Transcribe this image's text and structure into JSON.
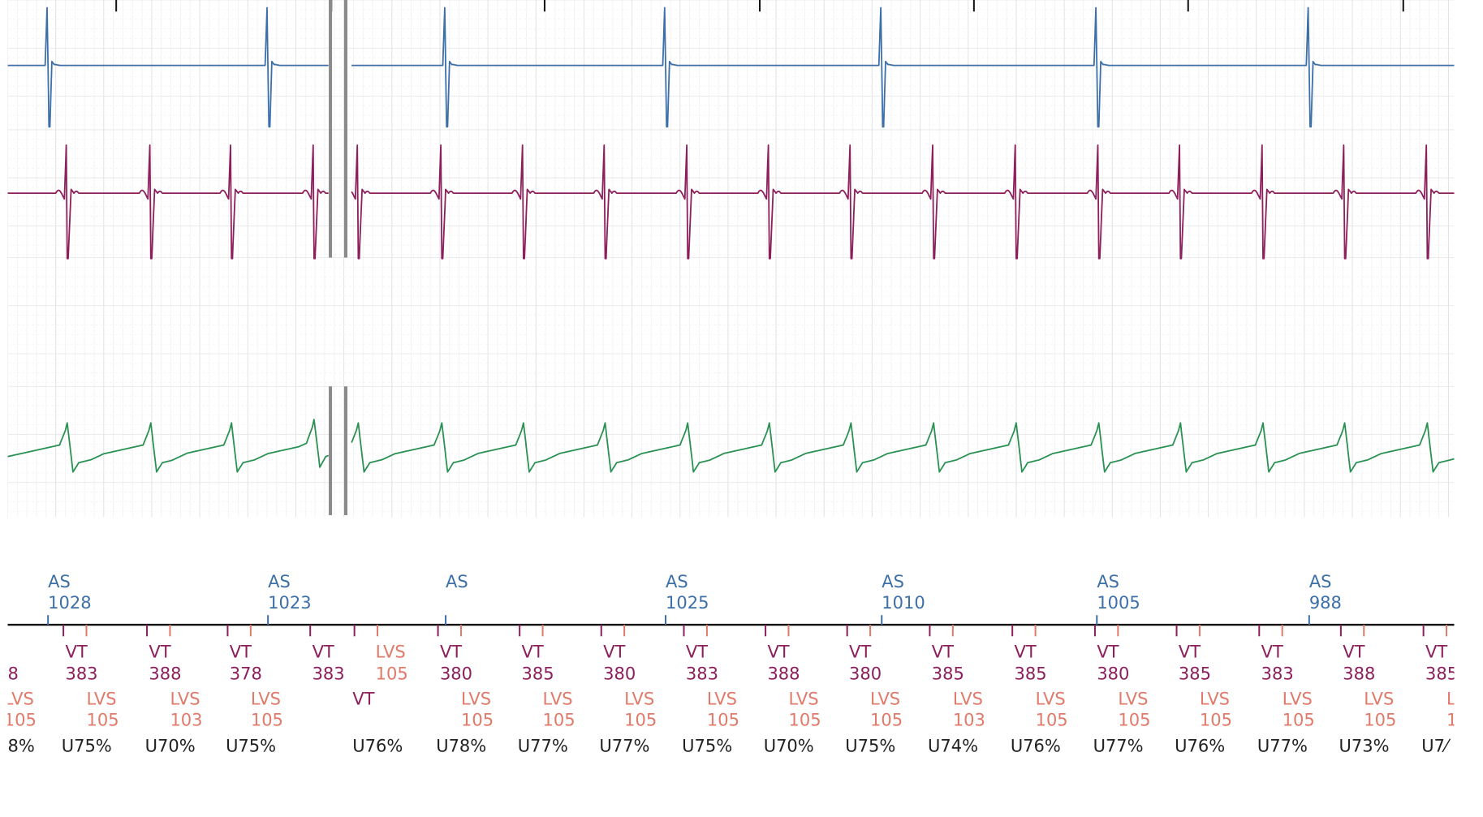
{
  "chart_data": {
    "type": "line",
    "title": "",
    "grid": true,
    "colors": {
      "atrial": "#3d6fa8",
      "rv": "#8c1f5c",
      "shock": "#2a9153",
      "vt_marker": "#8c1f5c",
      "lvs_marker": "#e07a6a",
      "pct_text": "#222222",
      "break_bar": "#8a8a8a"
    },
    "series": [
      {
        "key": "atrial",
        "beats": [
          50,
          279,
          464,
          693,
          918,
          1142,
          1363
        ]
      },
      {
        "key": "rv",
        "beats": [
          68,
          155,
          239,
          325,
          371,
          458,
          543,
          628,
          714,
          799,
          884,
          970,
          1056,
          1142,
          1227,
          1313,
          1398,
          1484
        ]
      },
      {
        "key": "shock",
        "beats": [
          68,
          155,
          239,
          325,
          371,
          458,
          543,
          628,
          714,
          799,
          884,
          970,
          1056,
          1142,
          1227,
          1313,
          1398,
          1484
        ]
      }
    ],
    "break_at": 352,
    "atrial_markers": [
      {
        "t": 50,
        "label": "AS",
        "value": "1028"
      },
      {
        "t": 279,
        "label": "AS",
        "value": "1023"
      },
      {
        "t": 464,
        "label": "AS",
        "value": ""
      },
      {
        "t": 693,
        "label": "AS",
        "value": "1025"
      },
      {
        "t": 918,
        "label": "AS",
        "value": "1010"
      },
      {
        "t": 1142,
        "label": "AS",
        "value": "1005"
      },
      {
        "t": 1363,
        "label": "AS",
        "value": "988"
      }
    ],
    "ventricular_markers": [
      {
        "t": 68,
        "vt": "VT",
        "vt_val": "383",
        "lvs": "LVS",
        "lvs_val": "105",
        "pct": "U75%"
      },
      {
        "t": 155,
        "vt": "VT",
        "vt_val": "388",
        "lvs": "LVS",
        "lvs_val": "103",
        "pct": "U70%"
      },
      {
        "t": 239,
        "vt": "VT",
        "vt_val": "378",
        "lvs": "LVS",
        "lvs_val": "105",
        "pct": "U75%"
      },
      {
        "t": 325,
        "vt": "VT",
        "vt_val": "383",
        "lvs": "",
        "lvs_val": "",
        "pct": ""
      },
      {
        "t": 371,
        "vt": "",
        "vt_val": "",
        "lvs": "LVS",
        "lvs_val": "105",
        "vt2": "VT",
        "pct": "U76%"
      },
      {
        "t": 458,
        "vt": "VT",
        "vt_val": "380",
        "lvs": "LVS",
        "lvs_val": "105",
        "pct": "U78%"
      },
      {
        "t": 543,
        "vt": "VT",
        "vt_val": "385",
        "lvs": "LVS",
        "lvs_val": "105",
        "pct": "U77%"
      },
      {
        "t": 628,
        "vt": "VT",
        "vt_val": "380",
        "lvs": "LVS",
        "lvs_val": "105",
        "pct": "U77%"
      },
      {
        "t": 714,
        "vt": "VT",
        "vt_val": "383",
        "lvs": "LVS",
        "lvs_val": "105",
        "pct": "U75%"
      },
      {
        "t": 799,
        "vt": "VT",
        "vt_val": "388",
        "lvs": "LVS",
        "lvs_val": "105",
        "pct": "U70%"
      },
      {
        "t": 884,
        "vt": "VT",
        "vt_val": "380",
        "lvs": "LVS",
        "lvs_val": "105",
        "pct": "U75%"
      },
      {
        "t": 970,
        "vt": "VT",
        "vt_val": "385",
        "lvs": "LVS",
        "lvs_val": "103",
        "pct": "U74%"
      },
      {
        "t": 1056,
        "vt": "VT",
        "vt_val": "385",
        "lvs": "LVS",
        "lvs_val": "105",
        "pct": "U76%"
      },
      {
        "t": 1142,
        "vt": "VT",
        "vt_val": "380",
        "lvs": "LVS",
        "lvs_val": "105",
        "pct": "U77%"
      },
      {
        "t": 1227,
        "vt": "VT",
        "vt_val": "385",
        "lvs": "LVS",
        "lvs_val": "105",
        "pct": "U76%"
      },
      {
        "t": 1313,
        "vt": "VT",
        "vt_val": "383",
        "lvs": "LVS",
        "lvs_val": "105",
        "pct": "U77%"
      },
      {
        "t": 1398,
        "vt": "VT",
        "vt_val": "388",
        "lvs": "LVS",
        "lvs_val": "105",
        "pct": "U73%"
      },
      {
        "t": 1484,
        "vt": "VT",
        "vt_val": "385",
        "lvs": "L",
        "lvs_val": "1",
        "pct": "U7⁄"
      }
    ],
    "cut_left_text": {
      "vt_val": "8",
      "lvs": "LVS",
      "lvs_val": "105",
      "pct": "8%"
    }
  }
}
